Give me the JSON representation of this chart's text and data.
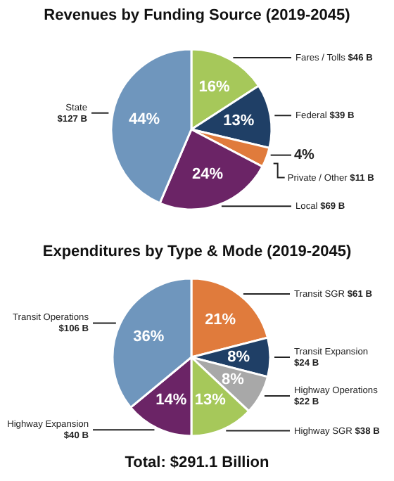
{
  "chart_data": [
    {
      "type": "pie",
      "title": "Revenues by Funding Source (2019-2045)",
      "categories": [
        "Fares / Tolls\t$46 B",
        "Federal\t$39 B",
        "Private / Other\t$11 B",
        "Local\t$69 B",
        "State\n$127 B"
      ],
      "values": [
        16,
        13,
        4,
        24,
        44
      ],
      "value_labels": [
        "16%",
        "13%",
        "4%",
        "24%",
        "44%"
      ],
      "colors": [
        "#a6c85a",
        "#1f3f66",
        "#e07b3c",
        "#6b2466",
        "#6f96bd"
      ]
    },
    {
      "type": "pie",
      "title": "Expenditures by Type & Mode  (2019-2045)",
      "categories": [
        "Transit SGR\t$61 B",
        "Transit Expansion\n$24 B",
        "Highway Operations\n$22 B",
        "Highway SGR\t$38 B",
        "Highway Expansion\n$40 B",
        "Transit Operations\n$106 B"
      ],
      "values": [
        21,
        8,
        8,
        13,
        14,
        36
      ],
      "value_labels": [
        "21%",
        "8%",
        "8%",
        "13%",
        "14%",
        "36%"
      ],
      "colors": [
        "#e07b3c",
        "#1f3f66",
        "#a8a8a8",
        "#a6c85a",
        "#6b2466",
        "#6f96bd"
      ],
      "annotations": [
        "Total: $291.1 Billion"
      ]
    }
  ]
}
